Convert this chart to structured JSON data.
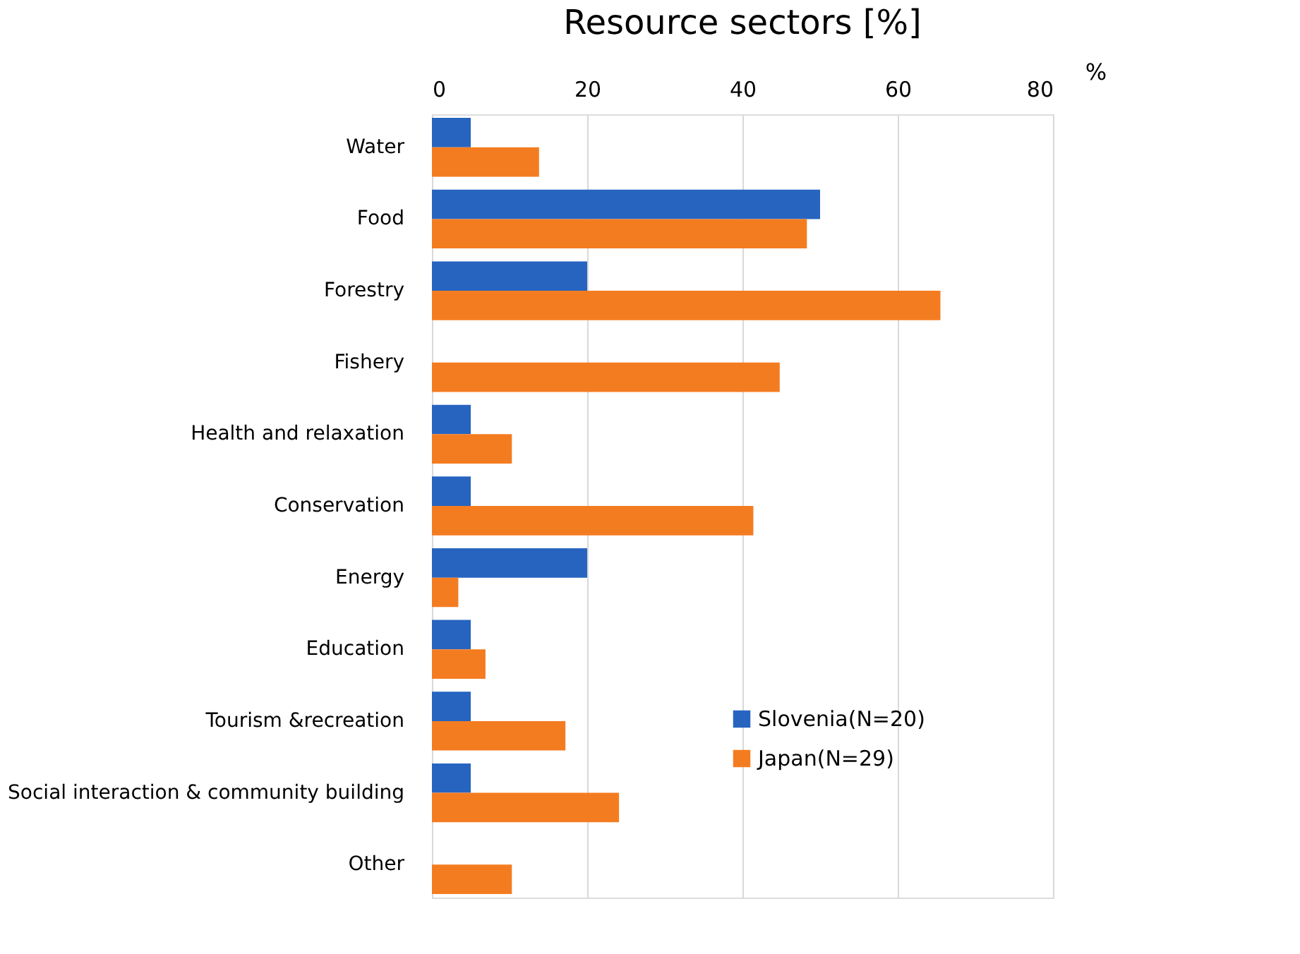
{
  "chart_data": {
    "type": "bar",
    "orientation": "horizontal",
    "title": "Resource  sectors [%]",
    "xlabel": "%",
    "categories": [
      "Water",
      "Food",
      "Forestry",
      "Fishery",
      "Health and relaxation",
      "Conservation",
      "Energy",
      "Education",
      "Tourism &recreation",
      "Social interaction & community building",
      "Other"
    ],
    "series": [
      {
        "name": "Slovenia(N=20)",
        "color": "#2764c0",
        "values": [
          5,
          50,
          20,
          0,
          5,
          5,
          20,
          5,
          5,
          5,
          0
        ]
      },
      {
        "name": "Japan(N=29)",
        "color": "#f47c20",
        "values": [
          13.8,
          48.3,
          65.5,
          44.8,
          10.3,
          41.4,
          3.4,
          6.9,
          17.2,
          24.1,
          10.3
        ]
      }
    ],
    "xlim": [
      0,
      80
    ],
    "xticks": [
      0,
      20,
      40,
      60,
      80
    ],
    "grid": "x",
    "legend": "bottom right"
  }
}
